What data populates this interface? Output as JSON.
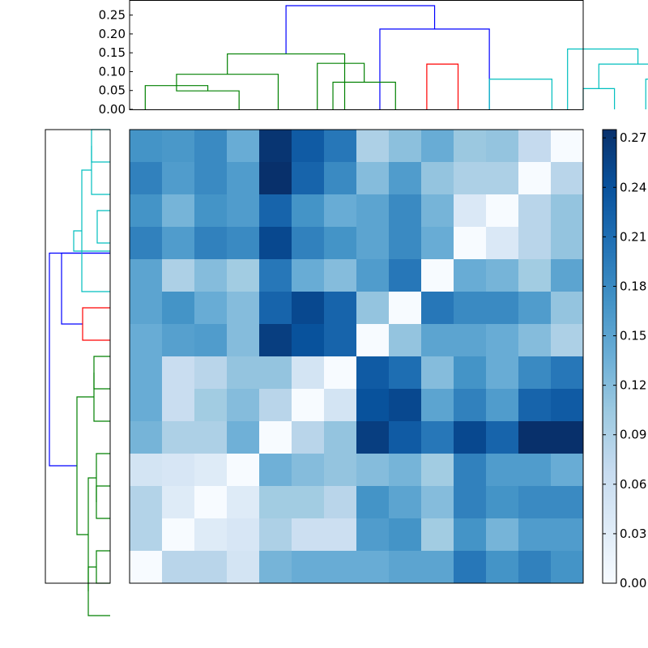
{
  "chart_data": [
    {
      "type": "dendrogram",
      "orientation": "top",
      "ylim": [
        0,
        0.29
      ],
      "yticks": [
        "0.00",
        "0.05",
        "0.10",
        "0.15",
        "0.20",
        "0.25"
      ],
      "leaf_count": 14,
      "colors": {
        "root": "#0000ff",
        "left_cluster": "#008000",
        "red_cluster": "#ff0000",
        "cyan_cluster": "#00bfbf"
      },
      "links": [
        {
          "l": 5.5,
          "r": 10.25,
          "h": 0.275,
          "c": "#0000ff"
        },
        {
          "l": 8.5,
          "r": 12.0,
          "h": 0.213,
          "c": "#0000ff"
        },
        {
          "l": 3.625,
          "r": 7.375,
          "h": 0.147,
          "c": "#008000"
        },
        {
          "l": 2.0,
          "r": 5.25,
          "h": 0.093,
          "c": "#008000"
        },
        {
          "l": 1,
          "r": 3.0,
          "h": 0.063,
          "c": "#008000"
        },
        {
          "l": 2,
          "r": 4,
          "h": 0.049,
          "c": "#008000"
        },
        {
          "l": 6.5,
          "r": 8,
          "h": 0.122,
          "c": "#008000"
        },
        {
          "l": 7,
          "r": 9,
          "h": 0.072,
          "c": "#008000"
        },
        {
          "l": 10,
          "r": 11,
          "h": 0.12,
          "c": "#ff0000"
        },
        {
          "l": 12,
          "r": 14,
          "h": 0.08,
          "c": "#00bfbf"
        },
        {
          "l": 14.5,
          "r": 16.75,
          "h": 0.16,
          "c": "#00bfbf"
        },
        {
          "l": 15.5,
          "r": 18.0,
          "h": 0.12,
          "c": "#00bfbf"
        },
        {
          "l": 15,
          "r": 16,
          "h": 0.055,
          "c": "#00bfbf"
        },
        {
          "l": 17,
          "r": 18,
          "h": 0.08,
          "c": "#00bfbf"
        }
      ]
    },
    {
      "type": "dendrogram",
      "orientation": "left",
      "leaf_count": 14,
      "links": [
        {
          "a": 10.375,
          "b": 3.8125,
          "d": 0.075,
          "c": "#0000ff"
        },
        {
          "a": 3.8125,
          "b": 6.0,
          "d": 0.06,
          "c": "#0000ff"
        },
        {
          "a": 3.75,
          "b": 3.125,
          "d": 0.045,
          "c": "#00bfbf"
        },
        {
          "a": 5.0,
          "b": 1.25,
          "d": 0.035,
          "c": "#00bfbf"
        },
        {
          "a": 0.5,
          "b": 2.0,
          "d": 0.023,
          "c": "#00bfbf"
        },
        {
          "a": 0.0,
          "b": 1.0,
          "d": 0.023,
          "c": "#00bfbf"
        },
        {
          "a": 2.5,
          "b": 3.5,
          "d": 0.016,
          "c": "#00bfbf"
        },
        {
          "a": 5.5,
          "b": 6.5,
          "d": 0.034,
          "c": "#ff0000"
        },
        {
          "a": 8.25,
          "b": 12.5,
          "d": 0.041,
          "c": "#008000"
        },
        {
          "a": 7.5,
          "b": 9.0,
          "d": 0.02,
          "c": "#008000"
        },
        {
          "a": 7.0,
          "b": 8.0,
          "d": 0.02,
          "c": "#008000"
        },
        {
          "a": 10.75,
          "b": 14.25,
          "d": 0.027,
          "c": "#008000"
        },
        {
          "a": 11.5,
          "b": 10.0,
          "d": 0.017,
          "c": "#008000"
        },
        {
          "a": 11.0,
          "b": 12.0,
          "d": 0.017,
          "c": "#008000"
        },
        {
          "a": 13.5,
          "b": 15.0,
          "d": 0.027,
          "c": "#008000"
        },
        {
          "a": 13.0,
          "b": 14.0,
          "d": 0.017,
          "c": "#008000"
        }
      ]
    },
    {
      "type": "heatmap",
      "rows": 14,
      "cols": 14,
      "colormap": "Blues",
      "vmin": 0.0,
      "vmax": 0.275,
      "matrix": [
        [
          0.17,
          0.165,
          0.18,
          0.14,
          0.27,
          0.23,
          0.2,
          0.09,
          0.115,
          0.14,
          0.105,
          0.11,
          0.07,
          0.0
        ],
        [
          0.19,
          0.16,
          0.18,
          0.16,
          0.28,
          0.22,
          0.18,
          0.12,
          0.16,
          0.11,
          0.09,
          0.09,
          0.0,
          0.08
        ],
        [
          0.17,
          0.13,
          0.17,
          0.16,
          0.22,
          0.17,
          0.14,
          0.15,
          0.18,
          0.13,
          0.04,
          0.0,
          0.08,
          0.11
        ],
        [
          0.19,
          0.16,
          0.19,
          0.18,
          0.25,
          0.19,
          0.17,
          0.15,
          0.18,
          0.14,
          0.0,
          0.04,
          0.08,
          0.11
        ],
        [
          0.15,
          0.09,
          0.12,
          0.1,
          0.2,
          0.14,
          0.12,
          0.16,
          0.2,
          0.0,
          0.14,
          0.13,
          0.1,
          0.15
        ],
        [
          0.15,
          0.17,
          0.14,
          0.12,
          0.22,
          0.25,
          0.22,
          0.11,
          0.0,
          0.2,
          0.18,
          0.18,
          0.16,
          0.11
        ],
        [
          0.14,
          0.155,
          0.16,
          0.12,
          0.26,
          0.24,
          0.22,
          0.0,
          0.11,
          0.15,
          0.15,
          0.14,
          0.12,
          0.09
        ],
        [
          0.14,
          0.065,
          0.08,
          0.11,
          0.11,
          0.05,
          0.0,
          0.23,
          0.21,
          0.12,
          0.17,
          0.14,
          0.18,
          0.2
        ],
        [
          0.14,
          0.065,
          0.1,
          0.12,
          0.08,
          0.0,
          0.05,
          0.24,
          0.25,
          0.15,
          0.19,
          0.16,
          0.22,
          0.23
        ],
        [
          0.13,
          0.09,
          0.09,
          0.135,
          0.0,
          0.08,
          0.11,
          0.26,
          0.23,
          0.2,
          0.25,
          0.22,
          0.28,
          0.28
        ],
        [
          0.05,
          0.045,
          0.035,
          0.0,
          0.135,
          0.12,
          0.11,
          0.12,
          0.13,
          0.1,
          0.19,
          0.16,
          0.16,
          0.14
        ],
        [
          0.085,
          0.035,
          0.0,
          0.035,
          0.1,
          0.1,
          0.08,
          0.17,
          0.15,
          0.12,
          0.19,
          0.17,
          0.18,
          0.18
        ],
        [
          0.085,
          0.0,
          0.035,
          0.045,
          0.09,
          0.06,
          0.06,
          0.16,
          0.17,
          0.1,
          0.17,
          0.13,
          0.16,
          0.16
        ],
        [
          0.0,
          0.08,
          0.08,
          0.05,
          0.13,
          0.14,
          0.14,
          0.14,
          0.15,
          0.15,
          0.2,
          0.17,
          0.19,
          0.17
        ]
      ]
    },
    {
      "type": "colorbar",
      "vmin": 0.0,
      "vmax": 0.275,
      "ticks": [
        "0.00",
        "0.03",
        "0.06",
        "0.09",
        "0.12",
        "0.15",
        "0.18",
        "0.21",
        "0.24",
        "0.27"
      ]
    }
  ]
}
